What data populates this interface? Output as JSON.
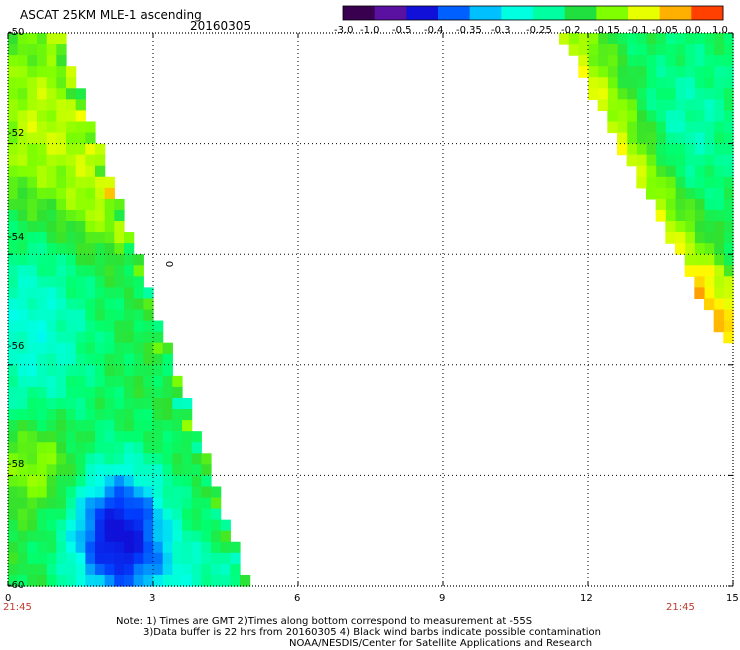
{
  "header": {
    "title": "ASCAT 25KM MLE-1 ascending",
    "date": "20160305"
  },
  "colorbar": {
    "ticks": [
      "-3.0",
      "-1.0",
      "-0.5",
      "-0.4",
      "-0.35",
      "-0.3",
      "-0.25",
      "-0.2",
      "-0.15",
      "-0.1",
      "-0.05",
      "0.0",
      "1.0"
    ],
    "colors": [
      "#3a0050",
      "#5a10a0",
      "#1010d8",
      "#0060ff",
      "#00c0ff",
      "#00ffe0",
      "#00ffa0",
      "#20e040",
      "#80ff00",
      "#e8ff00",
      "#ffb000",
      "#ff4000"
    ]
  },
  "chart_data": {
    "type": "heatmap",
    "x_ticks": [
      "0",
      "3",
      "6",
      "9",
      "12",
      "15"
    ],
    "y_ticks": [
      "-50",
      "-52",
      "-54",
      "-56",
      "-58",
      "-60"
    ],
    "xlim": [
      0,
      15
    ],
    "ylim": [
      -60,
      -50
    ],
    "grid": true,
    "start_time": "21:45",
    "end_time": "21:45",
    "contour_label": "0"
  },
  "notes": {
    "line1": "Note: 1) Times are GMT 2)Times along bottom correspond to measurement at -55S",
    "line2": "3)Data buffer is 22 hrs from 20160305 4) Black wind barbs indicate possible contamination",
    "line3": "NOAA/NESDIS/Center for Satellite Applications and Research"
  }
}
